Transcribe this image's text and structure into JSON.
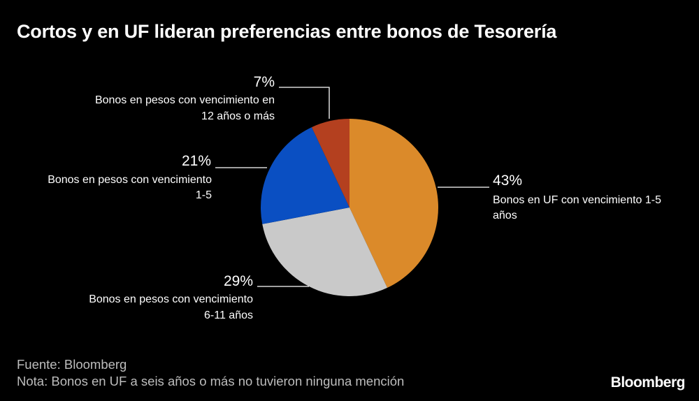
{
  "chart_data": {
    "type": "pie",
    "title": "Cortos y en UF lideran preferencias entre bonos de Tesorería",
    "slices": [
      {
        "pct_label": "43%",
        "value": 43,
        "label_lines": [
          "Bonos en UF con vencimiento 1-5",
          "años"
        ],
        "color": "#DB8A2A"
      },
      {
        "pct_label": "29%",
        "value": 29,
        "label_lines": [
          "Bonos en pesos con vencimiento",
          "6-11 años"
        ],
        "color": "#C9C9C9"
      },
      {
        "pct_label": "21%",
        "value": 21,
        "label_lines": [
          "Bonos en pesos con vencimiento",
          "1-5"
        ],
        "color": "#0A4FC2"
      },
      {
        "pct_label": "7%",
        "value": 7,
        "label_lines": [
          "Bonos en pesos con vencimiento en",
          "12 años o más"
        ],
        "color": "#B4401F"
      }
    ]
  },
  "footer": {
    "source": "Fuente: Bloomberg",
    "note": "Nota: Bonos en UF a seis años o más no tuvieron ninguna mención"
  },
  "brand": {
    "logo": "Bloomberg"
  }
}
